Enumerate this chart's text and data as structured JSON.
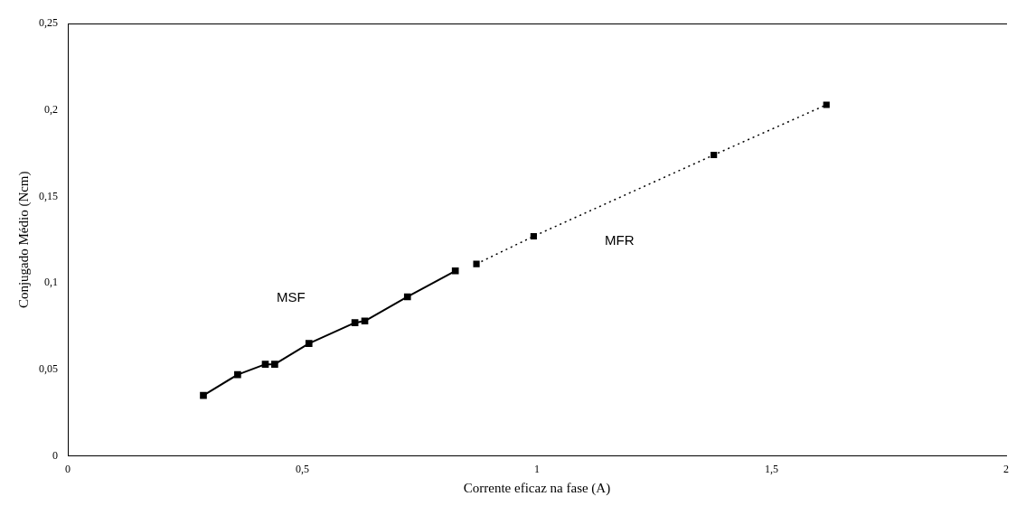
{
  "chart_data": {
    "type": "line",
    "xlabel": "Corrente eficaz na fase (A)",
    "ylabel": "Conjugado Médio (Ncm)",
    "xlim": [
      0,
      2
    ],
    "xticks": [
      0,
      {
        "value": 0.5,
        "label": "0,5"
      },
      1,
      {
        "value": 1.5,
        "label": "1,5"
      },
      2
    ],
    "ylim": [
      0,
      0.25
    ],
    "yticks": [
      0,
      {
        "value": 0.05,
        "label": "0,05"
      },
      {
        "value": 0.1,
        "label": "0,1"
      },
      {
        "value": 0.15,
        "label": "0,15"
      },
      {
        "value": 0.2,
        "label": "0,2"
      },
      {
        "value": 0.25,
        "label": "0,25"
      }
    ],
    "grid": false,
    "legend": false,
    "marker": "square",
    "series": [
      {
        "name": "MSF",
        "color": "#000000",
        "line_style": "solid",
        "x": [
          0.289,
          0.362,
          0.421,
          0.441,
          0.514,
          0.612,
          0.633,
          0.724,
          0.826
        ],
        "values": [
          0.035,
          0.047,
          0.053,
          0.053,
          0.065,
          0.077,
          0.078,
          0.092,
          0.107
        ]
      },
      {
        "name": "MFR",
        "color": "#000000",
        "line_style": "dotted",
        "x": [
          0.871,
          0.993,
          1.377,
          1.617
        ],
        "values": [
          0.111,
          0.127,
          0.174,
          0.203
        ]
      }
    ]
  }
}
